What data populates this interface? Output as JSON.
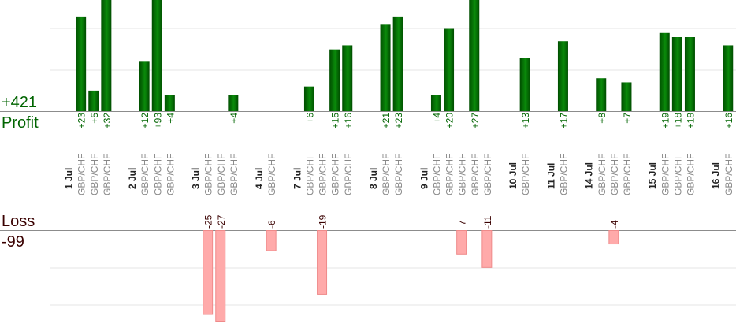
{
  "colors": {
    "profit_bar_dark": "#004d00",
    "profit_bar_light": "#0a8a0a",
    "profit_text": "#006400",
    "loss_bar": "#ffaaaa",
    "loss_bar_border": "#ef8a8a",
    "loss_text": "#3a0000",
    "date_label": "#222222",
    "symbol_label": "#888888",
    "grid": "#e6e6e6",
    "axis": "#8c8c8c"
  },
  "labels": {
    "profit_total": "+421",
    "profit_word": "Profit",
    "loss_word": "Loss",
    "loss_total": "-99"
  },
  "chart_data": {
    "type": "bar",
    "profit_ylim": [
      0,
      27
    ],
    "loss_ylim": [
      0,
      27
    ],
    "grid": true,
    "columns": [
      {
        "kind": "date",
        "label": "1 Jul"
      },
      {
        "kind": "trade",
        "label": "GBP/CHF",
        "value": 23
      },
      {
        "kind": "trade",
        "label": "GBP/CHF",
        "value": 5
      },
      {
        "kind": "trade",
        "label": "GBP/CHF",
        "value": 32
      },
      {
        "kind": "gap"
      },
      {
        "kind": "date",
        "label": "2 Jul"
      },
      {
        "kind": "trade",
        "label": "GBP/CHF",
        "value": 12
      },
      {
        "kind": "trade",
        "label": "GBP/CHF",
        "value": 93
      },
      {
        "kind": "trade",
        "label": "GBP/CHF",
        "value": 4
      },
      {
        "kind": "gap"
      },
      {
        "kind": "date",
        "label": "3 Jul"
      },
      {
        "kind": "trade",
        "label": "GBP/CHF",
        "value": -25
      },
      {
        "kind": "trade",
        "label": "GBP/CHF",
        "value": -27
      },
      {
        "kind": "trade",
        "label": "GBP/CHF",
        "value": 4
      },
      {
        "kind": "gap"
      },
      {
        "kind": "date",
        "label": "4 Jul"
      },
      {
        "kind": "trade",
        "label": "GBP/CHF",
        "value": -6
      },
      {
        "kind": "gap"
      },
      {
        "kind": "date",
        "label": "7 Jul"
      },
      {
        "kind": "trade",
        "label": "GBP/CHF",
        "value": 6
      },
      {
        "kind": "trade",
        "label": "GBP/CHF",
        "value": -19
      },
      {
        "kind": "trade",
        "label": "GBP/CHF",
        "value": 15
      },
      {
        "kind": "trade",
        "label": "GBP/CHF",
        "value": 16
      },
      {
        "kind": "gap"
      },
      {
        "kind": "date",
        "label": "8 Jul"
      },
      {
        "kind": "trade",
        "label": "GBP/CHF",
        "value": 21
      },
      {
        "kind": "trade",
        "label": "GBP/CHF",
        "value": 23
      },
      {
        "kind": "gap"
      },
      {
        "kind": "date",
        "label": "9 Jul"
      },
      {
        "kind": "trade",
        "label": "GBP/CHF",
        "value": 4
      },
      {
        "kind": "trade",
        "label": "GBP/CHF",
        "value": 20
      },
      {
        "kind": "trade",
        "label": "GBP/CHF",
        "value": -7
      },
      {
        "kind": "trade",
        "label": "GBP/CHF",
        "value": 27
      },
      {
        "kind": "trade",
        "label": "GBP/CHF",
        "value": -11
      },
      {
        "kind": "gap"
      },
      {
        "kind": "date",
        "label": "10 Jul"
      },
      {
        "kind": "trade",
        "label": "GBP/CHF",
        "value": 13
      },
      {
        "kind": "gap"
      },
      {
        "kind": "date",
        "label": "11 Jul"
      },
      {
        "kind": "trade",
        "label": "GBP/CHF",
        "value": 17
      },
      {
        "kind": "gap"
      },
      {
        "kind": "date",
        "label": "14 Jul"
      },
      {
        "kind": "trade",
        "label": "GBP/CHF",
        "value": 8
      },
      {
        "kind": "trade",
        "label": "GBP/CHF",
        "value": -4
      },
      {
        "kind": "trade",
        "label": "GBP/CHF",
        "value": 7
      },
      {
        "kind": "gap"
      },
      {
        "kind": "date",
        "label": "15 Jul"
      },
      {
        "kind": "trade",
        "label": "GBP/CHF",
        "value": 19
      },
      {
        "kind": "trade",
        "label": "GBP/CHF",
        "value": 18
      },
      {
        "kind": "trade",
        "label": "GBP/CHF",
        "value": 18
      },
      {
        "kind": "gap"
      },
      {
        "kind": "date",
        "label": "16 Jul"
      },
      {
        "kind": "trade",
        "label": "GBP/CHF",
        "value": 16
      }
    ]
  }
}
